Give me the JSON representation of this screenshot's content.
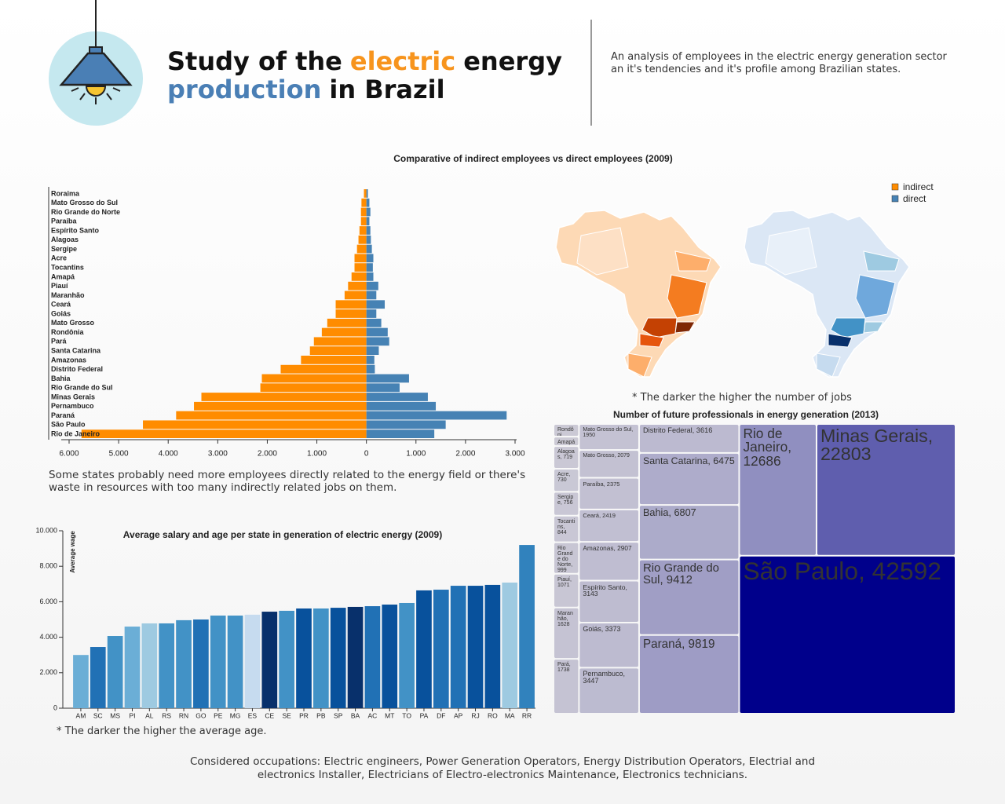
{
  "header": {
    "title": [
      {
        "text": "Study of the",
        "color": "#111111"
      },
      {
        "text": "electric",
        "color": "#f7941d"
      },
      {
        "text": "energy",
        "color": "#111111"
      },
      {
        "text": "production",
        "color": "#4a7fb5"
      },
      {
        "text": "in Brazil",
        "color": "#111111"
      }
    ],
    "description": "An analysis of employees in the electric energy generation sector an it's tendencies and it's profile among Brazilian states."
  },
  "map": {
    "note": "* The darker the higher the number of jobs"
  },
  "footer": "Considered occupations: Electric engineers, Power Generation Operators, Energy Distribution Operators, Electrial and electronics Installer, Electricians of Electro-electronics Maintenance, Electronics technicians.",
  "chart_data": [
    {
      "type": "bar",
      "orientation": "horizontal",
      "title": "Comparative of indirect employees vs direct employees (2009)",
      "categories": [
        "Roraima",
        "Mato Grosso do Sul",
        "Rio Grande do Norte",
        "Paraíba",
        "Espírito Santo",
        "Alagoas",
        "Sergipe",
        "Acre",
        "Tocantins",
        "Amapá",
        "Piauí",
        "Maranhão",
        "Ceará",
        "Goiás",
        "Mato Grosso",
        "Rondônia",
        "Pará",
        "Santa Catarina",
        "Amazonas",
        "Distrito Federal",
        "Bahia",
        "Rio Grande do Sul",
        "Minas Gerais",
        "Pernambuco",
        "Paraná",
        "São Paulo",
        "Rio de Janeiro"
      ],
      "series": [
        {
          "name": "indirect",
          "color": "#ff8c00",
          "values": [
            -50,
            -100,
            -110,
            -110,
            -140,
            -160,
            -190,
            -240,
            -240,
            -300,
            -370,
            -440,
            -620,
            -620,
            -790,
            -900,
            -1060,
            -1140,
            -1320,
            -1730,
            -2110,
            -2140,
            -3330,
            -3480,
            -3840,
            -4510,
            -5750
          ]
        },
        {
          "name": "direct",
          "color": "#4682b4",
          "values": [
            30,
            60,
            80,
            60,
            80,
            90,
            110,
            140,
            130,
            140,
            240,
            200,
            370,
            200,
            300,
            430,
            460,
            250,
            160,
            170,
            860,
            670,
            1240,
            1400,
            2830,
            1600,
            1370
          ]
        }
      ],
      "xlim": [
        -6000,
        3000
      ],
      "xticks": [
        {
          "value": -6000,
          "label": "6.000"
        },
        {
          "value": -5000,
          "label": "5.000"
        },
        {
          "value": -4000,
          "label": "4.000"
        },
        {
          "value": -3000,
          "label": "3.000"
        },
        {
          "value": -2000,
          "label": "2.000"
        },
        {
          "value": -1000,
          "label": "1.000"
        },
        0,
        {
          "value": 1000,
          "label": "1.000"
        },
        {
          "value": 2000,
          "label": "2.000"
        },
        {
          "value": 3000,
          "label": "3.000"
        }
      ],
      "caption": "Some states probably need more employees directly related to the energy field or there's waste in resources with too many indirectly related jobs on them.",
      "legend": "top-right"
    },
    {
      "type": "treemap",
      "title": "Number of future professionals in energy generation (2013)",
      "labels": [
        "Rondôni",
        "Amapá",
        "Alagoas, 719",
        "Acre, 730",
        "Sergipe, 756",
        "Tocantins, 844",
        "Rio Grande do Norte, 999",
        "Piauí, 1071",
        "Maranhão, 1628",
        "Pará, 1738",
        "Mato Grosso do Sul, 1950",
        "Mato Grosso, 2079",
        "Paraíba, 2375",
        "Ceará, 2419",
        "Amazonas, 2907",
        "Espírito Santo, 3143",
        "Goiás, 3373",
        "Pernambuco, 3447",
        "Distrito Federal, 3616",
        "Santa Catarina, 6475",
        "Bahia, 6807",
        "Rio Grande do Sul, 9412",
        "Paraná, 9819",
        "Rio de Janeiro, 12686",
        "Minas Gerais, 22803",
        "São Paulo, 42592"
      ],
      "values": [
        400,
        300,
        719,
        730,
        756,
        844,
        999,
        1071,
        1628,
        1738,
        1950,
        2079,
        2375,
        2419,
        2907,
        3143,
        3373,
        3447,
        3616,
        6475,
        6807,
        9412,
        9819,
        12686,
        22803,
        42592
      ]
    },
    {
      "type": "bar",
      "title": "Average salary and age per state in generation of electric energy (2009)",
      "y_label": "Average wage",
      "categories": [
        "AM",
        "SC",
        "MS",
        "PI",
        "AL",
        "RS",
        "RN",
        "GO",
        "PE",
        "MG",
        "ES",
        "CE",
        "SE",
        "PR",
        "PB",
        "SP",
        "BA",
        "AC",
        "MT",
        "TO",
        "PA",
        "DF",
        "AP",
        "RJ",
        "RO",
        "MA",
        "RR"
      ],
      "values": [
        3000,
        3450,
        4070,
        4600,
        4780,
        4780,
        4960,
        5000,
        5220,
        5220,
        5270,
        5440,
        5490,
        5620,
        5620,
        5660,
        5710,
        5750,
        5840,
        5930,
        6640,
        6680,
        6900,
        6900,
        6950,
        7080,
        9200
      ],
      "colors": [
        "#6baed6",
        "#2171b5",
        "#4292c6",
        "#6baed6",
        "#9ecae1",
        "#4292c6",
        "#4292c6",
        "#2171b5",
        "#4292c6",
        "#4292c6",
        "#c6dbef",
        "#08306b",
        "#4292c6",
        "#08519c",
        "#4292c6",
        "#08519c",
        "#08306b",
        "#2171b5",
        "#08519c",
        "#4292c6",
        "#08519c",
        "#2171b5",
        "#2171b5",
        "#08519c",
        "#08519c",
        "#9ecae1",
        "#3182bd"
      ],
      "ylim": [
        0,
        10000
      ],
      "yticks": [
        0,
        {
          "value": 2000,
          "label": "2.000"
        },
        {
          "value": 4000,
          "label": "4.000"
        },
        {
          "value": 6000,
          "label": "6.000"
        },
        {
          "value": 8000,
          "label": "8.000"
        },
        {
          "value": 10000,
          "label": "10.000"
        }
      ],
      "note": "* The darker the higher the average age."
    }
  ]
}
